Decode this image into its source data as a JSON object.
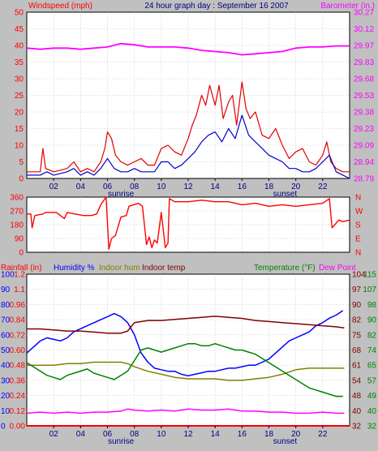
{
  "colors": {
    "background": "#c0c0c0",
    "plot_bg": "#ffffff",
    "wind": "#ff0000",
    "gust": "#e00000",
    "avg_wind": "#0000cc",
    "barometer": "#ff00ff",
    "direction": "#ff0000",
    "rain": "#ff0000",
    "humidity": "#0000ff",
    "indoor_hum": "#808000",
    "indoor_temp": "#800000",
    "temperature": "#008000",
    "dew_point": "#ff00ff",
    "grid": "#b0b0b0"
  },
  "chart_data": [
    {
      "type": "line",
      "id": "wind_baro",
      "title": "24 hour graph day : September 16 2007",
      "left_axis_label": "Windspeed (mph)",
      "right_axis_label": "Barometer (in.)",
      "x_ticks": [
        "02",
        "04",
        "06",
        "08",
        "10",
        "12",
        "14",
        "16",
        "18",
        "20",
        "22"
      ],
      "x_annotations": [
        {
          "x": 7.0,
          "text": "sunrise"
        },
        {
          "x": 19.2,
          "text": "sunset"
        }
      ],
      "xlim": [
        0,
        24
      ],
      "left_ticks": [
        "0",
        "5",
        "10",
        "15",
        "20",
        "25",
        "30",
        "35",
        "40",
        "45",
        "50"
      ],
      "left_ylim": [
        0,
        50
      ],
      "right_ticks": [
        "28.79",
        "28.94",
        "29.09",
        "29.23",
        "29.38",
        "29.53",
        "29.68",
        "29.83",
        "29.97",
        "30.12",
        "30.27"
      ],
      "right_ylim": [
        28.79,
        30.27
      ],
      "series": [
        {
          "key": "gust",
          "axis": "left",
          "x": [
            0,
            0.5,
            1,
            1.2,
            1.4,
            2,
            3,
            3.5,
            4,
            4.5,
            5,
            5.5,
            5.8,
            6,
            6.3,
            6.6,
            7,
            7.5,
            8,
            8.5,
            9,
            9.5,
            10,
            10.5,
            11,
            11.5,
            12,
            12.3,
            12.6,
            13,
            13.3,
            13.6,
            14,
            14.3,
            14.6,
            15,
            15.3,
            15.6,
            16,
            16.3,
            16.6,
            17,
            17.5,
            18,
            18.5,
            19,
            19.5,
            20,
            20.5,
            21,
            21.5,
            22,
            22.3,
            22.6,
            23,
            23.5,
            24
          ],
          "y": [
            2,
            2,
            2,
            9,
            3,
            2,
            3,
            5,
            2,
            3,
            2,
            5,
            9,
            14,
            12,
            7,
            5,
            4,
            5,
            6,
            4,
            4,
            9,
            10,
            8,
            7,
            12,
            16,
            19,
            25,
            22,
            28,
            22,
            28,
            18,
            23,
            25,
            16,
            29,
            21,
            18,
            20,
            13,
            12,
            15,
            10,
            6,
            8,
            9,
            5,
            4,
            7,
            11,
            5,
            3,
            2,
            2
          ]
        },
        {
          "key": "avg_wind",
          "axis": "left",
          "x": [
            0,
            0.5,
            1,
            1.5,
            2,
            3,
            3.5,
            4,
            4.5,
            5,
            5.5,
            6,
            6.5,
            7,
            7.5,
            8,
            8.5,
            9,
            9.5,
            10,
            10.5,
            11,
            11.5,
            12,
            12.5,
            13,
            13.5,
            14,
            14.5,
            15,
            15.5,
            16,
            16.5,
            17,
            17.5,
            18,
            18.5,
            19,
            19.5,
            20,
            20.5,
            21,
            21.5,
            22,
            22.5,
            23,
            23.5,
            24
          ],
          "y": [
            1,
            1,
            1,
            2,
            1,
            2,
            3,
            1,
            2,
            1,
            3,
            6,
            3,
            2,
            2,
            3,
            2,
            2,
            2,
            5,
            5,
            3,
            4,
            6,
            8,
            11,
            13,
            14,
            11,
            15,
            12,
            19,
            13,
            11,
            9,
            7,
            6,
            5,
            3,
            3,
            2,
            2,
            3,
            5,
            7,
            2,
            1,
            0
          ]
        },
        {
          "key": "barometer",
          "axis": "right",
          "x": [
            0,
            1,
            2,
            3,
            4,
            5,
            6,
            7,
            8,
            9,
            10,
            11,
            12,
            13,
            14,
            15,
            16,
            17,
            18,
            19,
            20,
            21,
            22,
            23,
            24
          ],
          "y": [
            29.95,
            29.94,
            29.95,
            29.95,
            29.94,
            29.95,
            29.96,
            29.99,
            29.98,
            29.96,
            29.96,
            29.96,
            29.95,
            29.93,
            29.92,
            29.91,
            29.89,
            29.9,
            29.91,
            29.92,
            29.95,
            29.96,
            29.96,
            29.97,
            29.97
          ]
        }
      ]
    },
    {
      "type": "line",
      "id": "wind_direction",
      "left_ticks": [
        "0",
        "90",
        "180",
        "270",
        "360"
      ],
      "left_ylim": [
        0,
        360
      ],
      "right_ticks": [
        "N",
        "W",
        "S",
        "E",
        "N"
      ],
      "xlim": [
        0,
        24
      ],
      "series": [
        {
          "key": "direction",
          "axis": "left",
          "x": [
            0,
            0.3,
            0.4,
            0.6,
            1.2,
            1.4,
            2.2,
            2.8,
            3,
            3.6,
            4.2,
            4.8,
            5.2,
            5.5,
            5.9,
            6.1,
            6.3,
            6.6,
            7,
            7.4,
            7.6,
            8.3,
            8.6,
            8.9,
            9.1,
            9.3,
            9.5,
            9.7,
            10,
            10.3,
            10.5,
            10.6,
            11,
            12,
            13,
            14,
            15,
            16,
            17,
            18,
            19,
            20,
            21,
            22,
            22.5,
            22.7,
            22.9,
            23.2,
            23.5,
            24
          ],
          "y": [
            250,
            250,
            160,
            240,
            250,
            260,
            260,
            220,
            260,
            250,
            240,
            240,
            250,
            310,
            360,
            20,
            90,
            110,
            230,
            240,
            300,
            320,
            300,
            50,
            100,
            30,
            80,
            60,
            260,
            30,
            60,
            350,
            330,
            330,
            340,
            330,
            330,
            310,
            320,
            300,
            310,
            300,
            310,
            320,
            350,
            160,
            180,
            210,
            200,
            210
          ]
        }
      ]
    },
    {
      "type": "line",
      "id": "temp_hum_rain",
      "legend_left": [
        "Rainfall (in)",
        "Humidity %",
        "Indoor hum",
        "Indoor temp"
      ],
      "legend_right": [
        "Temperature (°F)",
        "Dew Point"
      ],
      "x_ticks": [
        "02",
        "04",
        "06",
        "08",
        "10",
        "12",
        "14",
        "16",
        "18",
        "20",
        "22"
      ],
      "x_annotations": [
        {
          "x": 7.0,
          "text": "sunrise"
        },
        {
          "x": 19.2,
          "text": "sunset"
        }
      ],
      "xlim": [
        0,
        24
      ],
      "humidity_ticks": [
        "0",
        "10",
        "20",
        "30",
        "40",
        "50",
        "60",
        "70",
        "80",
        "90",
        "100"
      ],
      "humidity_ylim": [
        0,
        100
      ],
      "rain_ticks": [
        "0.00",
        "0.12",
        "0.24",
        "0.36",
        "0.48",
        "0.60",
        "0.72",
        "0.84",
        "0.96",
        "1.1",
        "1.2"
      ],
      "rain_ylim": [
        0,
        1.2
      ],
      "temp_ticks_a": [
        "32",
        "40",
        "48",
        "54",
        "61",
        "68",
        "75",
        "82",
        "90",
        "97",
        "104"
      ],
      "temp_ticks_b": [
        "32",
        "40",
        "49",
        "57",
        "65",
        "74",
        "82",
        "90",
        "98",
        "107",
        "115"
      ],
      "temp_ylim": [
        32,
        104
      ],
      "series": [
        {
          "key": "rain",
          "axis": "rain",
          "x": [
            0,
            24
          ],
          "y": [
            0,
            0
          ]
        },
        {
          "key": "humidity",
          "axis": "humidity",
          "x": [
            0,
            0.5,
            1,
            1.5,
            2,
            2.5,
            3,
            3.5,
            4,
            4.5,
            5,
            5.5,
            6,
            6.5,
            7,
            7.5,
            8,
            8.5,
            9,
            9.5,
            10,
            10.5,
            11,
            11.5,
            12,
            12.5,
            13,
            13.5,
            14,
            14.5,
            15,
            15.5,
            16,
            16.5,
            17,
            17.5,
            18,
            18.5,
            19,
            19.5,
            20,
            20.5,
            21,
            21.5,
            22,
            22.5,
            23,
            23.5
          ],
          "y": [
            48,
            52,
            56,
            58,
            57,
            56,
            58,
            62,
            64,
            66,
            68,
            70,
            72,
            74,
            72,
            68,
            60,
            48,
            42,
            38,
            37,
            36,
            36,
            34,
            33,
            34,
            35,
            36,
            36,
            37,
            38,
            38,
            39,
            40,
            40,
            42,
            44,
            48,
            52,
            56,
            58,
            60,
            62,
            66,
            68,
            71,
            73,
            76
          ]
        },
        {
          "key": "indoor_hum",
          "axis": "humidity",
          "x": [
            0,
            1,
            2,
            3,
            4,
            5,
            6,
            7,
            7.5,
            8,
            9,
            10,
            11,
            12,
            13,
            14,
            15,
            16,
            17,
            18,
            19,
            20,
            21,
            22,
            23,
            23.6
          ],
          "y": [
            40,
            40,
            40,
            41,
            41,
            42,
            42,
            42,
            41,
            39,
            36,
            34,
            32,
            31,
            31,
            31,
            30,
            30,
            31,
            32,
            34,
            37,
            38,
            38,
            38,
            38
          ]
        },
        {
          "key": "indoor_temp",
          "axis": "temp",
          "x": [
            0,
            1,
            2,
            3,
            4,
            5,
            6,
            7,
            7.5,
            8,
            9,
            10,
            11,
            12,
            13,
            14,
            15,
            16,
            17,
            18,
            19,
            20,
            21,
            22,
            23,
            23.6
          ],
          "y": [
            78,
            78,
            77.5,
            77,
            77,
            76.5,
            76,
            76,
            77,
            81,
            82,
            82,
            82.5,
            83,
            83.5,
            84,
            83.5,
            83,
            82,
            81.5,
            81,
            80.5,
            80,
            79.5,
            79,
            78.5
          ]
        },
        {
          "key": "temperature",
          "axis": "temp",
          "x": [
            0,
            0.5,
            1,
            1.5,
            2,
            2.5,
            3,
            3.5,
            4,
            4.5,
            5,
            5.5,
            6,
            6.5,
            7,
            7.5,
            8,
            8.5,
            9,
            9.5,
            10,
            10.5,
            11,
            11.5,
            12,
            12.5,
            13,
            13.5,
            14,
            14.5,
            15,
            15.5,
            16,
            16.5,
            17,
            17.5,
            18,
            18.5,
            19,
            19.5,
            20,
            20.5,
            21,
            21.5,
            22,
            22.5,
            23,
            23.5
          ],
          "y": [
            62,
            60,
            58,
            56,
            55,
            54,
            56,
            57,
            58,
            59,
            57,
            56,
            55,
            54,
            56,
            58,
            63,
            68,
            69,
            68,
            67,
            68,
            69,
            70,
            71,
            71,
            70,
            70,
            71,
            70,
            69,
            68,
            68,
            67,
            66,
            64,
            62,
            60,
            58,
            56,
            54,
            52,
            50,
            49,
            48,
            47,
            46,
            46
          ]
        },
        {
          "key": "dew_point",
          "axis": "temp",
          "x": [
            0,
            1,
            2,
            3,
            4,
            5,
            6,
            7,
            7.5,
            8,
            9,
            10,
            11,
            12,
            13,
            14,
            15,
            16,
            17,
            18,
            19,
            20,
            21,
            22,
            23,
            23.6
          ],
          "y": [
            38,
            38.5,
            38,
            38.5,
            38,
            38.5,
            38.5,
            39,
            40,
            39.5,
            39,
            39.5,
            39,
            40,
            39.5,
            39.5,
            40,
            39,
            39,
            38.5,
            38.5,
            38,
            38,
            38.5,
            38,
            38
          ]
        }
      ]
    }
  ]
}
